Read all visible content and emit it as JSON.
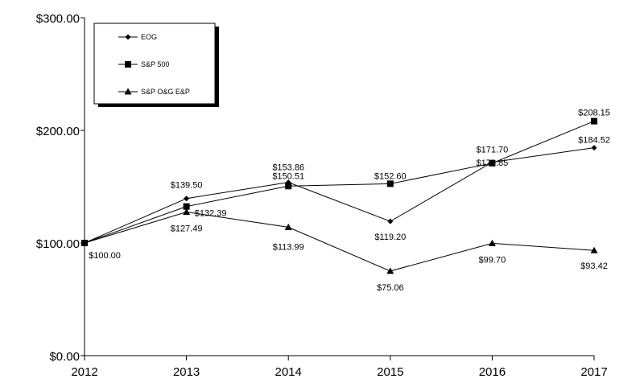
{
  "chart_data": {
    "type": "line",
    "title": "",
    "xlabel": "",
    "ylabel": "",
    "x": [
      "2012",
      "2013",
      "2014",
      "2015",
      "2016",
      "2017"
    ],
    "ylim": [
      0,
      300
    ],
    "yticks": [
      "$0.00",
      "$100.00",
      "$200.00",
      "$300.00"
    ],
    "ytick_values": [
      0,
      100,
      200,
      300
    ],
    "grid": false,
    "legend_position": "top-left",
    "series": [
      {
        "name": "EOG",
        "marker": "diamond",
        "values": [
          100,
          139.5,
          153.86,
          119.2,
          171.7,
          184.52
        ],
        "labels": [
          "$100.00",
          "$139.50",
          "$153.86",
          "$119.20",
          "$171.70",
          "$184.52"
        ]
      },
      {
        "name": "S&P 500",
        "marker": "square",
        "values": [
          100,
          132.39,
          150.51,
          152.6,
          170.85,
          208.15
        ],
        "labels": [
          null,
          "$132.39",
          "$150.51",
          "$152.60",
          "$170.85",
          "$208.15"
        ]
      },
      {
        "name": "S&P O&G E&P",
        "marker": "triangle",
        "values": [
          100,
          127.49,
          113.99,
          75.06,
          99.7,
          93.42
        ],
        "labels": [
          null,
          "$127.49",
          "$113.99",
          "$75.06",
          "$99.70",
          "$93.42"
        ]
      }
    ]
  }
}
